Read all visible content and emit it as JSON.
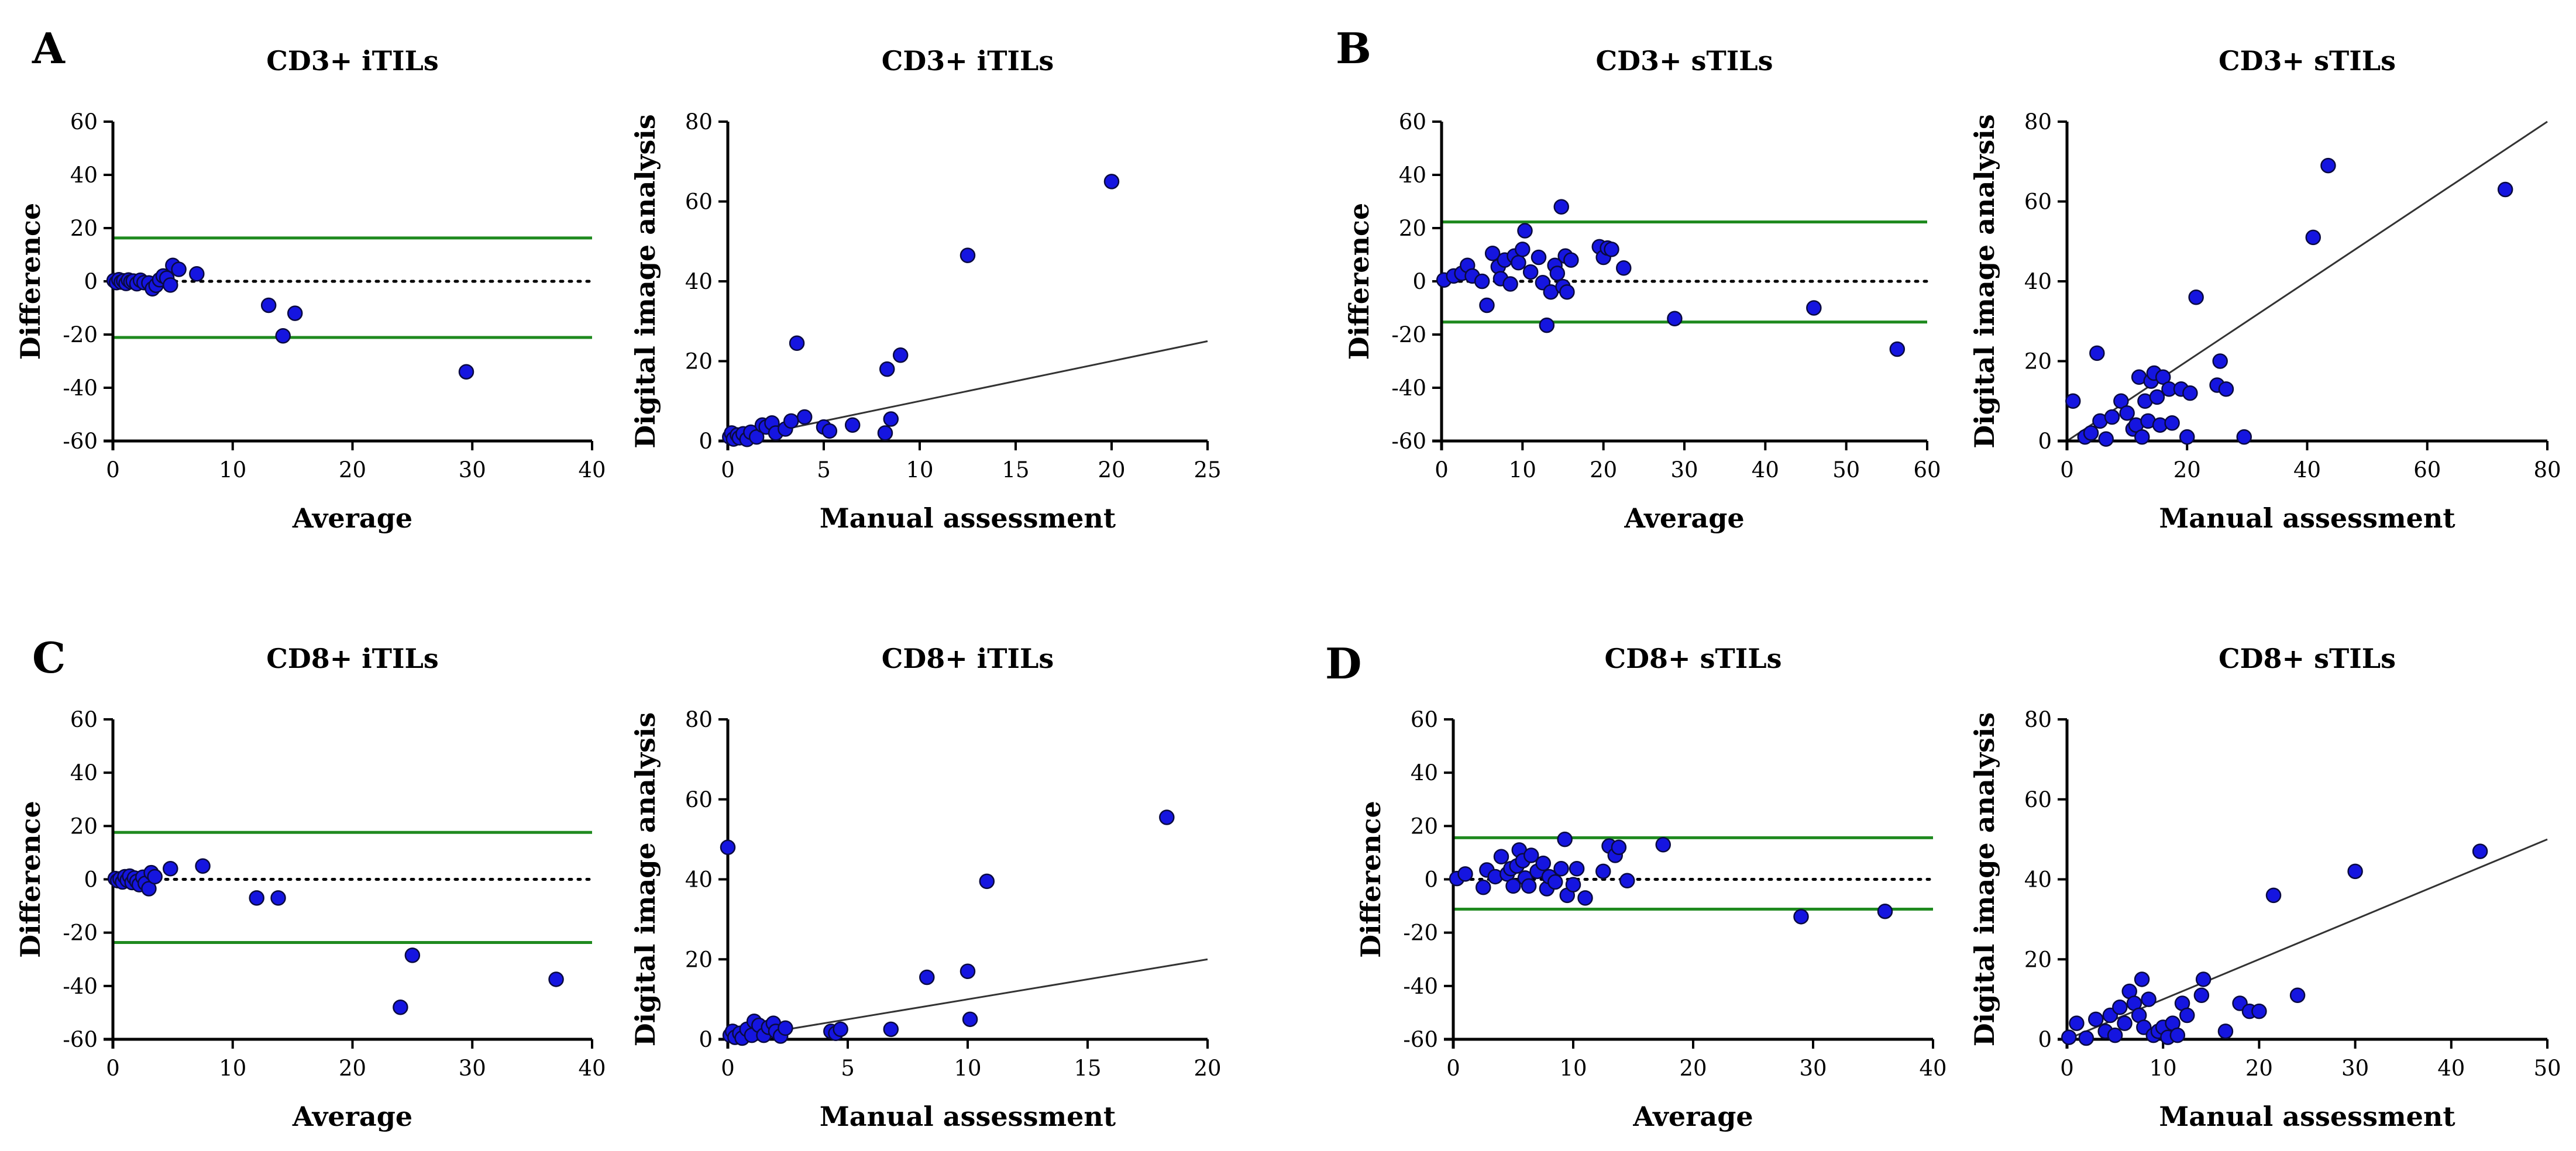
{
  "panel_letters": [
    "A",
    "B",
    "C",
    "D"
  ],
  "chart_data": [
    {
      "type": "scatter",
      "subtype": "bland-altman",
      "panel": "A",
      "title": "CD3+ iTILs",
      "xlabel": "Average",
      "ylabel": "Difference",
      "xlim": [
        0,
        40
      ],
      "ylim": [
        -60,
        60
      ],
      "xticks": [
        0,
        10,
        20,
        30,
        40
      ],
      "yticks": [
        -60,
        -40,
        -20,
        0,
        20,
        40,
        60
      ],
      "mean_line": 0,
      "limits_of_agreement": [
        16.3,
        -21.1
      ],
      "line_colors": {
        "loa": "#1f8a1f",
        "mean": "#000000"
      },
      "marker_color": "#1515e0",
      "points": [
        [
          0.1,
          0.3
        ],
        [
          0.3,
          -0.5
        ],
        [
          0.5,
          0.6
        ],
        [
          0.7,
          -0.3
        ],
        [
          0.9,
          0.2
        ],
        [
          1.1,
          -0.8
        ],
        [
          1.3,
          0.5
        ],
        [
          1.5,
          -0.2
        ],
        [
          1.7,
          0.1
        ],
        [
          2.0,
          -0.9
        ],
        [
          2.3,
          0.4
        ],
        [
          2.6,
          -0.5
        ],
        [
          3.0,
          -0.6
        ],
        [
          3.3,
          -2.8
        ],
        [
          3.6,
          -1.5
        ],
        [
          3.9,
          0.6
        ],
        [
          4.2,
          2.0
        ],
        [
          4.5,
          1.2
        ],
        [
          4.8,
          -1.4
        ],
        [
          5.0,
          6.0
        ],
        [
          5.5,
          4.5
        ],
        [
          7.0,
          2.8
        ],
        [
          13.0,
          -9.0
        ],
        [
          14.2,
          -20.5
        ],
        [
          15.2,
          -12.0
        ],
        [
          29.5,
          -34.0
        ]
      ]
    },
    {
      "type": "scatter",
      "subtype": "correlation",
      "panel": "A",
      "title": "CD3+ iTILs",
      "xlabel": "Manual assessment",
      "ylabel": "Digital image analysis",
      "xlim": [
        0,
        25
      ],
      "ylim": [
        0,
        80
      ],
      "xticks": [
        0,
        5,
        10,
        15,
        20,
        25
      ],
      "yticks": [
        0,
        20,
        40,
        60,
        80
      ],
      "fit_line": [
        [
          0,
          0
        ],
        [
          25,
          25
        ]
      ],
      "line_color": "#333333",
      "marker_color": "#1515e0",
      "points": [
        [
          0.1,
          1.0
        ],
        [
          0.2,
          2.0
        ],
        [
          0.3,
          0.5
        ],
        [
          0.5,
          1.5
        ],
        [
          0.6,
          0.8
        ],
        [
          0.8,
          1.8
        ],
        [
          1.0,
          0.4
        ],
        [
          1.2,
          2.2
        ],
        [
          1.5,
          1.0
        ],
        [
          1.8,
          4.0
        ],
        [
          2.0,
          3.5
        ],
        [
          2.3,
          4.5
        ],
        [
          2.5,
          2.0
        ],
        [
          3.0,
          3.0
        ],
        [
          3.3,
          5.0
        ],
        [
          3.6,
          24.5
        ],
        [
          4.0,
          6.0
        ],
        [
          5.0,
          3.5
        ],
        [
          5.3,
          2.5
        ],
        [
          6.5,
          4.0
        ],
        [
          8.2,
          2.0
        ],
        [
          8.3,
          18.0
        ],
        [
          8.5,
          5.5
        ],
        [
          9.0,
          21.5
        ],
        [
          12.5,
          46.5
        ],
        [
          20.0,
          65.0
        ]
      ]
    },
    {
      "type": "scatter",
      "subtype": "bland-altman",
      "panel": "B",
      "title": "CD3+ sTILs",
      "xlabel": "Average",
      "ylabel": "Difference",
      "xlim": [
        0,
        60
      ],
      "ylim": [
        -60,
        60
      ],
      "xticks": [
        0,
        10,
        20,
        30,
        40,
        50,
        60
      ],
      "yticks": [
        -60,
        -40,
        -20,
        0,
        20,
        40,
        60
      ],
      "mean_line": 0,
      "limits_of_agreement": [
        22.3,
        -15.3
      ],
      "line_colors": {
        "loa": "#1f8a1f",
        "mean": "#000000"
      },
      "marker_color": "#1515e0",
      "points": [
        [
          0.3,
          0.5
        ],
        [
          1.5,
          2.0
        ],
        [
          2.5,
          3.0
        ],
        [
          3.2,
          6.0
        ],
        [
          3.8,
          2.0
        ],
        [
          5.0,
          0.0
        ],
        [
          5.6,
          -9.0
        ],
        [
          6.3,
          10.5
        ],
        [
          7.0,
          5.5
        ],
        [
          7.3,
          1.0
        ],
        [
          7.8,
          8.0
        ],
        [
          8.5,
          -1.0
        ],
        [
          9.0,
          9.5
        ],
        [
          9.5,
          7.0
        ],
        [
          10.0,
          12.0
        ],
        [
          10.3,
          19.0
        ],
        [
          11.0,
          3.5
        ],
        [
          12.0,
          9.0
        ],
        [
          12.5,
          -0.5
        ],
        [
          13.0,
          -16.5
        ],
        [
          13.5,
          -4.0
        ],
        [
          14.0,
          6.0
        ],
        [
          14.3,
          3.0
        ],
        [
          14.8,
          28.0
        ],
        [
          15.0,
          -2.0
        ],
        [
          15.3,
          9.5
        ],
        [
          15.5,
          -4.0
        ],
        [
          16.0,
          8.0
        ],
        [
          19.5,
          13.0
        ],
        [
          20.0,
          9.0
        ],
        [
          20.5,
          12.5
        ],
        [
          21.0,
          12.0
        ],
        [
          22.5,
          5.0
        ],
        [
          28.8,
          -14.0
        ],
        [
          46.0,
          -10.0
        ],
        [
          56.3,
          -25.5
        ]
      ]
    },
    {
      "type": "scatter",
      "subtype": "correlation",
      "panel": "B",
      "title": "CD3+ sTILs",
      "xlabel": "Manual assessment",
      "ylabel": "Digital image analysis",
      "xlim": [
        0,
        80
      ],
      "ylim": [
        0,
        80
      ],
      "xticks": [
        0,
        20,
        40,
        60,
        80
      ],
      "yticks": [
        0,
        20,
        40,
        60,
        80
      ],
      "fit_line": [
        [
          0,
          0
        ],
        [
          80,
          80
        ]
      ],
      "line_color": "#333333",
      "marker_color": "#1515e0",
      "points": [
        [
          1.0,
          10.0
        ],
        [
          3.0,
          1.0
        ],
        [
          4.0,
          2.0
        ],
        [
          5.0,
          22.0
        ],
        [
          5.5,
          5.0
        ],
        [
          6.5,
          0.5
        ],
        [
          7.5,
          6.0
        ],
        [
          9.0,
          10.0
        ],
        [
          10.0,
          7.0
        ],
        [
          11.0,
          3.0
        ],
        [
          11.5,
          4.0
        ],
        [
          12.0,
          16.0
        ],
        [
          12.5,
          1.0
        ],
        [
          13.0,
          10.0
        ],
        [
          13.5,
          5.0
        ],
        [
          14.0,
          15.0
        ],
        [
          14.5,
          17.0
        ],
        [
          15.0,
          11.0
        ],
        [
          15.5,
          4.0
        ],
        [
          16.0,
          16.0
        ],
        [
          17.0,
          13.0
        ],
        [
          17.5,
          4.5
        ],
        [
          19.0,
          13.0
        ],
        [
          20.0,
          1.0
        ],
        [
          20.5,
          12.0
        ],
        [
          21.5,
          36.0
        ],
        [
          25.0,
          14.0
        ],
        [
          25.5,
          20.0
        ],
        [
          26.5,
          13.0
        ],
        [
          29.5,
          1.0
        ],
        [
          41.0,
          51.0
        ],
        [
          43.5,
          69.0
        ],
        [
          73.0,
          63.0
        ]
      ]
    },
    {
      "type": "scatter",
      "subtype": "bland-altman",
      "panel": "C",
      "title": "CD8+ iTILs",
      "xlabel": "Average",
      "ylabel": "Difference",
      "xlim": [
        0,
        40
      ],
      "ylim": [
        -60,
        60
      ],
      "xticks": [
        0,
        10,
        20,
        30,
        40
      ],
      "yticks": [
        -60,
        -40,
        -20,
        0,
        20,
        40,
        60
      ],
      "mean_line": 0,
      "limits_of_agreement": [
        17.6,
        -23.7
      ],
      "line_colors": {
        "loa": "#1f8a1f",
        "mean": "#000000"
      },
      "marker_color": "#1515e0",
      "points": [
        [
          0.2,
          0.3
        ],
        [
          0.4,
          -0.5
        ],
        [
          0.6,
          0.2
        ],
        [
          0.8,
          -1.0
        ],
        [
          1.0,
          1.0
        ],
        [
          1.2,
          -0.3
        ],
        [
          1.4,
          1.2
        ],
        [
          1.6,
          -1.2
        ],
        [
          1.8,
          0.5
        ],
        [
          2.0,
          -0.8
        ],
        [
          2.2,
          -2.0
        ],
        [
          2.5,
          0.8
        ],
        [
          2.7,
          -1.5
        ],
        [
          3.0,
          -3.5
        ],
        [
          3.2,
          2.5
        ],
        [
          3.5,
          1.0
        ],
        [
          4.8,
          4.0
        ],
        [
          7.5,
          5.0
        ],
        [
          12.0,
          -7.0
        ],
        [
          13.8,
          -7.0
        ],
        [
          24.0,
          -48.0
        ],
        [
          25.0,
          -28.5
        ],
        [
          37.0,
          -37.5
        ]
      ]
    },
    {
      "type": "scatter",
      "subtype": "correlation",
      "panel": "C",
      "title": "CD8+ iTILs",
      "xlabel": "Manual assessment",
      "ylabel": "Digital image analysis",
      "xlim": [
        0,
        20
      ],
      "ylim": [
        0,
        80
      ],
      "xticks": [
        0,
        5,
        10,
        15,
        20
      ],
      "yticks": [
        0,
        20,
        40,
        60,
        80
      ],
      "fit_line": [
        [
          0,
          0
        ],
        [
          20,
          20
        ]
      ],
      "line_color": "#333333",
      "marker_color": "#1515e0",
      "points": [
        [
          0.0,
          48.0
        ],
        [
          0.1,
          1.0
        ],
        [
          0.2,
          2.0
        ],
        [
          0.3,
          0.5
        ],
        [
          0.5,
          1.5
        ],
        [
          0.6,
          0.3
        ],
        [
          0.8,
          2.5
        ],
        [
          1.0,
          1.0
        ],
        [
          1.1,
          4.5
        ],
        [
          1.3,
          3.5
        ],
        [
          1.5,
          1.0
        ],
        [
          1.7,
          3.0
        ],
        [
          1.9,
          4.0
        ],
        [
          2.0,
          2.0
        ],
        [
          2.2,
          0.8
        ],
        [
          2.4,
          2.8
        ],
        [
          4.3,
          2.0
        ],
        [
          4.5,
          1.5
        ],
        [
          4.7,
          2.5
        ],
        [
          6.8,
          2.5
        ],
        [
          8.3,
          15.5
        ],
        [
          10.0,
          17.0
        ],
        [
          10.1,
          5.0
        ],
        [
          10.8,
          39.5
        ],
        [
          18.3,
          55.5
        ]
      ]
    },
    {
      "type": "scatter",
      "subtype": "bland-altman",
      "panel": "D",
      "title": "CD8+ sTILs",
      "xlabel": "Average",
      "ylabel": "Difference",
      "xlim": [
        0,
        40
      ],
      "ylim": [
        -60,
        60
      ],
      "xticks": [
        0,
        10,
        20,
        30,
        40
      ],
      "yticks": [
        -60,
        -40,
        -20,
        0,
        20,
        40,
        60
      ],
      "mean_line": 0,
      "limits_of_agreement": [
        15.6,
        -11.2
      ],
      "line_colors": {
        "loa": "#1f8a1f",
        "mean": "#000000"
      },
      "marker_color": "#1515e0",
      "points": [
        [
          0.3,
          0.3
        ],
        [
          1.0,
          2.0
        ],
        [
          2.5,
          -3.0
        ],
        [
          2.8,
          3.5
        ],
        [
          3.5,
          1.0
        ],
        [
          4.0,
          8.5
        ],
        [
          4.5,
          2.0
        ],
        [
          4.8,
          4.0
        ],
        [
          5.0,
          -2.5
        ],
        [
          5.3,
          5.0
        ],
        [
          5.5,
          11.0
        ],
        [
          5.8,
          7.0
        ],
        [
          6.0,
          0.5
        ],
        [
          6.3,
          -2.5
        ],
        [
          6.5,
          9.0
        ],
        [
          7.0,
          3.0
        ],
        [
          7.5,
          6.0
        ],
        [
          7.8,
          -3.5
        ],
        [
          8.0,
          1.0
        ],
        [
          8.5,
          -1.0
        ],
        [
          9.0,
          4.0
        ],
        [
          9.3,
          15.0
        ],
        [
          9.5,
          -6.0
        ],
        [
          10.0,
          -2.0
        ],
        [
          10.3,
          4.0
        ],
        [
          11.0,
          -7.0
        ],
        [
          12.5,
          3.0
        ],
        [
          13.0,
          12.5
        ],
        [
          13.5,
          9.0
        ],
        [
          13.8,
          12.0
        ],
        [
          14.5,
          -0.5
        ],
        [
          17.5,
          13.0
        ],
        [
          29.0,
          -14.0
        ],
        [
          36.0,
          -12.0
        ]
      ]
    },
    {
      "type": "scatter",
      "subtype": "correlation",
      "panel": "D",
      "title": "CD8+ sTILs",
      "xlabel": "Manual assessment",
      "ylabel": "Digital image analysis",
      "xlim": [
        0,
        50
      ],
      "ylim": [
        0,
        80
      ],
      "xticks": [
        0,
        10,
        20,
        30,
        40,
        50
      ],
      "yticks": [
        0,
        20,
        40,
        60,
        80
      ],
      "fit_line": [
        [
          0,
          0
        ],
        [
          50,
          50
        ]
      ],
      "line_color": "#333333",
      "marker_color": "#1515e0",
      "points": [
        [
          0.2,
          0.5
        ],
        [
          1.0,
          4.0
        ],
        [
          2.0,
          0.3
        ],
        [
          3.0,
          5.0
        ],
        [
          4.0,
          2.0
        ],
        [
          4.5,
          6.0
        ],
        [
          5.0,
          1.0
        ],
        [
          5.5,
          8.0
        ],
        [
          6.0,
          4.0
        ],
        [
          6.5,
          12.0
        ],
        [
          7.0,
          9.0
        ],
        [
          7.5,
          6.0
        ],
        [
          7.8,
          15.0
        ],
        [
          8.0,
          3.0
        ],
        [
          8.5,
          10.0
        ],
        [
          9.0,
          1.0
        ],
        [
          9.5,
          2.0
        ],
        [
          10.0,
          3.0
        ],
        [
          10.5,
          0.5
        ],
        [
          11.0,
          4.0
        ],
        [
          11.5,
          1.0
        ],
        [
          12.0,
          9.0
        ],
        [
          12.5,
          6.0
        ],
        [
          14.0,
          11.0
        ],
        [
          14.2,
          15.0
        ],
        [
          16.5,
          2.0
        ],
        [
          18.0,
          9.0
        ],
        [
          19.0,
          7.0
        ],
        [
          20.0,
          7.0
        ],
        [
          21.5,
          36.0
        ],
        [
          24.0,
          11.0
        ],
        [
          30.0,
          42.0
        ],
        [
          43.0,
          47.0
        ]
      ]
    }
  ]
}
